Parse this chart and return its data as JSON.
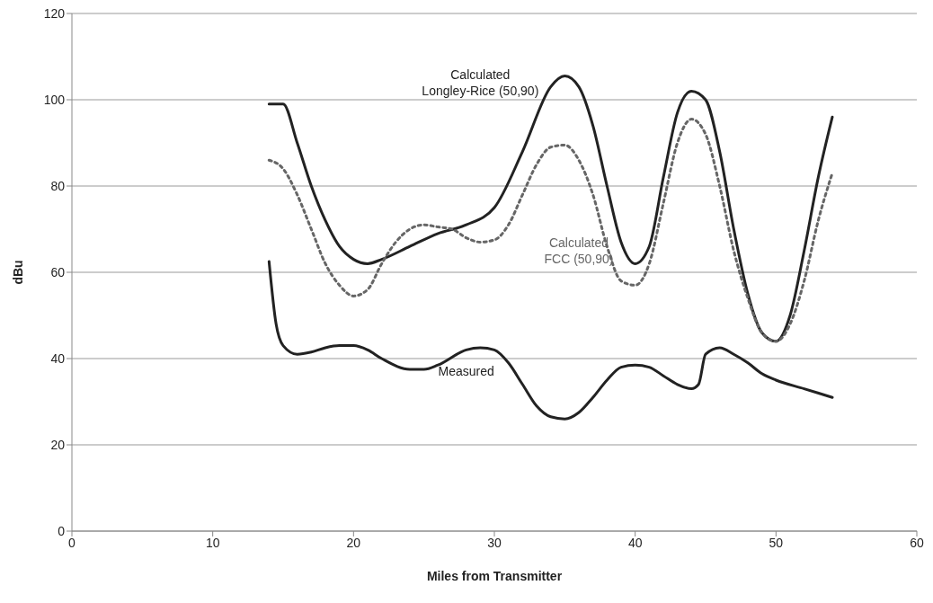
{
  "chart_data": {
    "type": "line",
    "xlabel": "Miles from Transmitter",
    "ylabel": "dBu",
    "xlim": [
      0,
      60
    ],
    "xticks": [
      0,
      10,
      20,
      30,
      40,
      50,
      60
    ],
    "ylim": [
      0,
      120
    ],
    "yticks": [
      0,
      20,
      40,
      60,
      80,
      100,
      120
    ],
    "grid": "y",
    "legend": false,
    "marker": "none",
    "series": [
      {
        "name": "Calculated Longley-Rice (50,90)",
        "color": "#222222",
        "line_style": "solid",
        "x": [
          14,
          15,
          16,
          17,
          18,
          19,
          20,
          21,
          22,
          24,
          26,
          28,
          30,
          32,
          34,
          35,
          36,
          37,
          38,
          39,
          40,
          41,
          42,
          43,
          44,
          45,
          46,
          47,
          48,
          49,
          50,
          51,
          52,
          53,
          54
        ],
        "values": [
          99,
          99,
          90,
          80,
          72,
          66,
          63,
          62,
          63,
          66,
          69,
          71,
          75,
          88,
          103,
          105.5,
          103,
          94,
          80,
          67,
          62,
          66,
          82,
          97,
          102,
          100,
          88,
          70,
          55,
          46,
          44,
          50,
          65,
          82,
          96
        ]
      },
      {
        "name": "Calculated FCC (50,90)",
        "color": "#666666",
        "line_style": "dotted",
        "x": [
          14,
          15,
          16,
          17,
          18,
          19,
          20,
          21,
          22,
          23,
          24,
          25,
          26,
          27,
          28,
          29,
          30,
          31,
          32,
          33,
          34,
          35,
          36,
          37,
          38,
          39,
          40,
          41,
          42,
          43,
          44,
          45,
          46,
          47,
          48,
          49,
          50,
          51,
          52,
          53,
          54
        ],
        "values": [
          86,
          84,
          78,
          70,
          62,
          57,
          54.5,
          56,
          62,
          67,
          70,
          71,
          70.5,
          70,
          68,
          67,
          67.5,
          71,
          78,
          85,
          89,
          89.5,
          86,
          78,
          66,
          58,
          57,
          62,
          76,
          90,
          95.5,
          92,
          80,
          65,
          54,
          46,
          44,
          48,
          58,
          72,
          83
        ]
      },
      {
        "name": "Measured",
        "color": "#222222",
        "line_style": "solid",
        "x": [
          14,
          14.5,
          15,
          16,
          17,
          18,
          19,
          20,
          21,
          22,
          24,
          25,
          26,
          28,
          29,
          30,
          31,
          32,
          33,
          34,
          35,
          36,
          37,
          38,
          39,
          40,
          41,
          42,
          43,
          44,
          44.5,
          45,
          46,
          47,
          48,
          49,
          50,
          52,
          54
        ],
        "values": [
          62.5,
          48,
          43,
          41,
          41.5,
          42.5,
          43,
          43,
          42,
          40,
          37.5,
          37.5,
          38.5,
          42,
          42.5,
          42,
          39,
          34,
          29,
          26.5,
          26,
          27.5,
          31,
          35,
          38,
          38.5,
          38,
          36,
          34,
          33,
          34,
          41,
          42.5,
          41,
          39,
          36.5,
          35,
          33,
          31
        ]
      }
    ]
  }
}
